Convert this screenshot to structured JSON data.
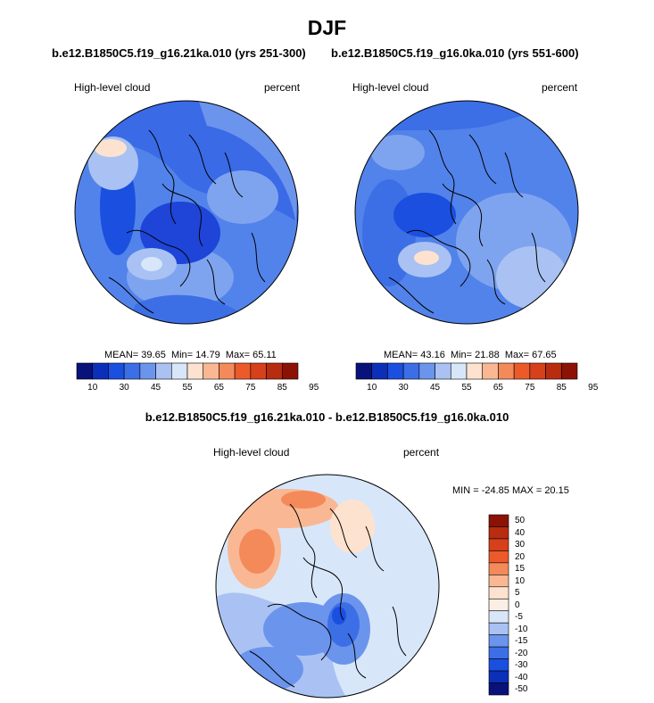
{
  "title": "DJF",
  "panels": [
    {
      "case_name": "b.e12.B1850C5.f19_g16.21ka.010 (yrs 251-300)",
      "variable_label": "High-level cloud",
      "units_label": "percent",
      "stats": {
        "mean_label": "MEAN=",
        "mean": "39.65",
        "min_label": "Min=",
        "min": "14.79",
        "max_label": "Max=",
        "max": "65.11"
      }
    },
    {
      "case_name": "b.e12.B1850C5.f19_g16.0ka.010 (yrs 551-600)",
      "variable_label": "High-level cloud",
      "units_label": "percent",
      "stats": {
        "mean_label": "MEAN=",
        "mean": "43.16",
        "min_label": "Min=",
        "min": "21.88",
        "max_label": "Max=",
        "max": "67.65"
      }
    }
  ],
  "colorbar_top": {
    "labels": [
      "10",
      "30",
      "45",
      "55",
      "65",
      "75",
      "85",
      "95"
    ],
    "colors": [
      "#08127a",
      "#0b2fb8",
      "#1a4fe0",
      "#3c6fe6",
      "#6b94ec",
      "#a9c2f3",
      "#d8e6fa",
      "#fde3cf",
      "#f9b893",
      "#f48a5a",
      "#ec5a2a",
      "#d6401a",
      "#b82c10",
      "#8c1205"
    ]
  },
  "diff": {
    "title": "b.e12.B1850C5.f19_g16.21ka.010 - b.e12.B1850C5.f19_g16.0ka.010",
    "variable_label": "High-level cloud",
    "units_label": "percent",
    "minmax_label": "MIN = -24.85 MAX = 20.15"
  },
  "colorbar_diff": {
    "labels": [
      "50",
      "40",
      "30",
      "20",
      "15",
      "10",
      "5",
      "0",
      "-5",
      "-10",
      "-15",
      "-20",
      "-30",
      "-40",
      "-50"
    ],
    "colors": [
      "#8c1205",
      "#b82c10",
      "#d6401a",
      "#ec5a2a",
      "#f48a5a",
      "#f9b893",
      "#fde3cf",
      "#fbeee4",
      "#d8e6fa",
      "#a9c2f3",
      "#6b94ec",
      "#3c6fe6",
      "#1a4fe0",
      "#0b2fb8",
      "#08127a"
    ]
  }
}
